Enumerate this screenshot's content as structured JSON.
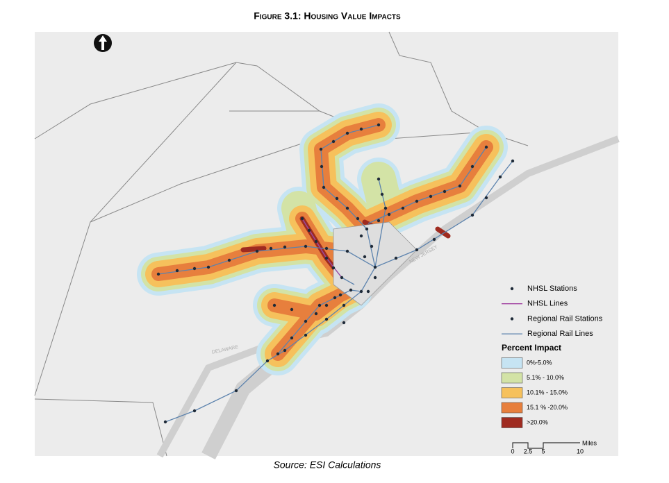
{
  "title": "Figure 3.1: Housing Value Impacts",
  "map": {
    "labels": [
      "DELAWARE",
      "NEW JERSEY"
    ]
  },
  "legend": {
    "items": [
      "NHSL Stations",
      "NHSL Lines",
      "Regional Rail Stations",
      "Regional Rail Lines"
    ],
    "heading": "Percent Impact",
    "classes": [
      {
        "label": "0%-5.0%",
        "color": "#c6e4f3"
      },
      {
        "label": "5.1% - 10.0%",
        "color": "#d3e3a6"
      },
      {
        "label": "10.1% - 15.0%",
        "color": "#f6c15c"
      },
      {
        "label": "15.1 % -20.0%",
        "color": "#e77f3d"
      },
      {
        "label": ">20.0%",
        "color": "#9f2b20"
      }
    ]
  },
  "scale_bar": {
    "ticks": [
      "0",
      "2.5",
      "5",
      "10"
    ],
    "unit": "Miles"
  },
  "source": "Source: ESI Calculations"
}
